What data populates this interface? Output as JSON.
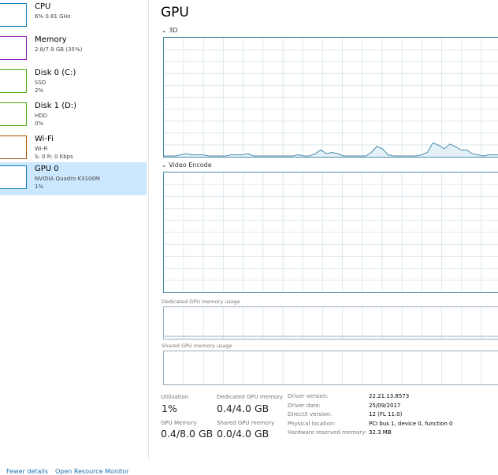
{
  "sidebar": {
    "items": [
      {
        "title": "CPU",
        "line1": "6% 0.81 GHz",
        "line2": "",
        "color": "#117dbb"
      },
      {
        "title": "Memory",
        "line1": "2.8/7.9 GB (35%)",
        "line2": "",
        "color": "#8b12ae"
      },
      {
        "title": "Disk 0 (C:)",
        "line1": "SSD",
        "line2": "2%",
        "color": "#4da60c"
      },
      {
        "title": "Disk 1 (D:)",
        "line1": "HDD",
        "line2": "0%",
        "color": "#4da60c"
      },
      {
        "title": "Wi-Fi",
        "line1": "Wi-Fi",
        "line2": "S: 0 R: 0 Kbps",
        "color": "#a74f01"
      },
      {
        "title": "GPU 0",
        "line1": "NVIDIA Quadro K3100M",
        "line2": "1%",
        "color": "#117dbb",
        "selected": true
      }
    ]
  },
  "main": {
    "title": "GPU",
    "graphs": {
      "g3d": "3D",
      "encode": "Video Encode",
      "dedicated": "Dedicated GPU memory usage",
      "shared": "Shared GPU memory usage"
    },
    "graph_color": "#4a8ca8",
    "g3d_values": [
      0,
      0,
      0,
      1,
      2,
      1,
      1,
      1,
      0,
      0,
      0,
      0,
      1,
      1,
      1,
      2,
      0,
      0,
      0,
      0,
      0,
      0,
      0,
      0,
      1,
      0,
      0,
      2,
      5,
      2,
      3,
      2,
      0,
      0,
      0,
      0,
      0,
      3,
      8,
      6,
      1,
      0,
      0,
      0,
      0,
      0,
      1,
      3,
      11,
      9,
      6,
      10,
      8,
      5,
      5,
      2,
      1,
      0,
      1,
      1,
      1
    ],
    "stats": {
      "utilization_label": "Utilization",
      "utilization": "1%",
      "dedicated_label": "Dedicated GPU memory",
      "dedicated": "0.4/4.0 GB",
      "gpu_memory_label": "GPU Memory",
      "gpu_memory": "0.4/8.0 GB",
      "shared_label": "Shared GPU memory",
      "shared": "0.0/4.0 GB"
    },
    "details": [
      {
        "k": "Driver version:",
        "v": "22.21.13.8573"
      },
      {
        "k": "Driver date:",
        "v": "25/09/2017"
      },
      {
        "k": "DirectX version:",
        "v": "12 (FL 11.0)"
      },
      {
        "k": "Physical location:",
        "v": "PCI bus 1, device 0, function 0"
      },
      {
        "k": "Hardware reserved memory:",
        "v": "32.3 MB"
      }
    ]
  },
  "footer": {
    "fewer": "Fewer details",
    "monitor": "Open Resource Monitor"
  }
}
